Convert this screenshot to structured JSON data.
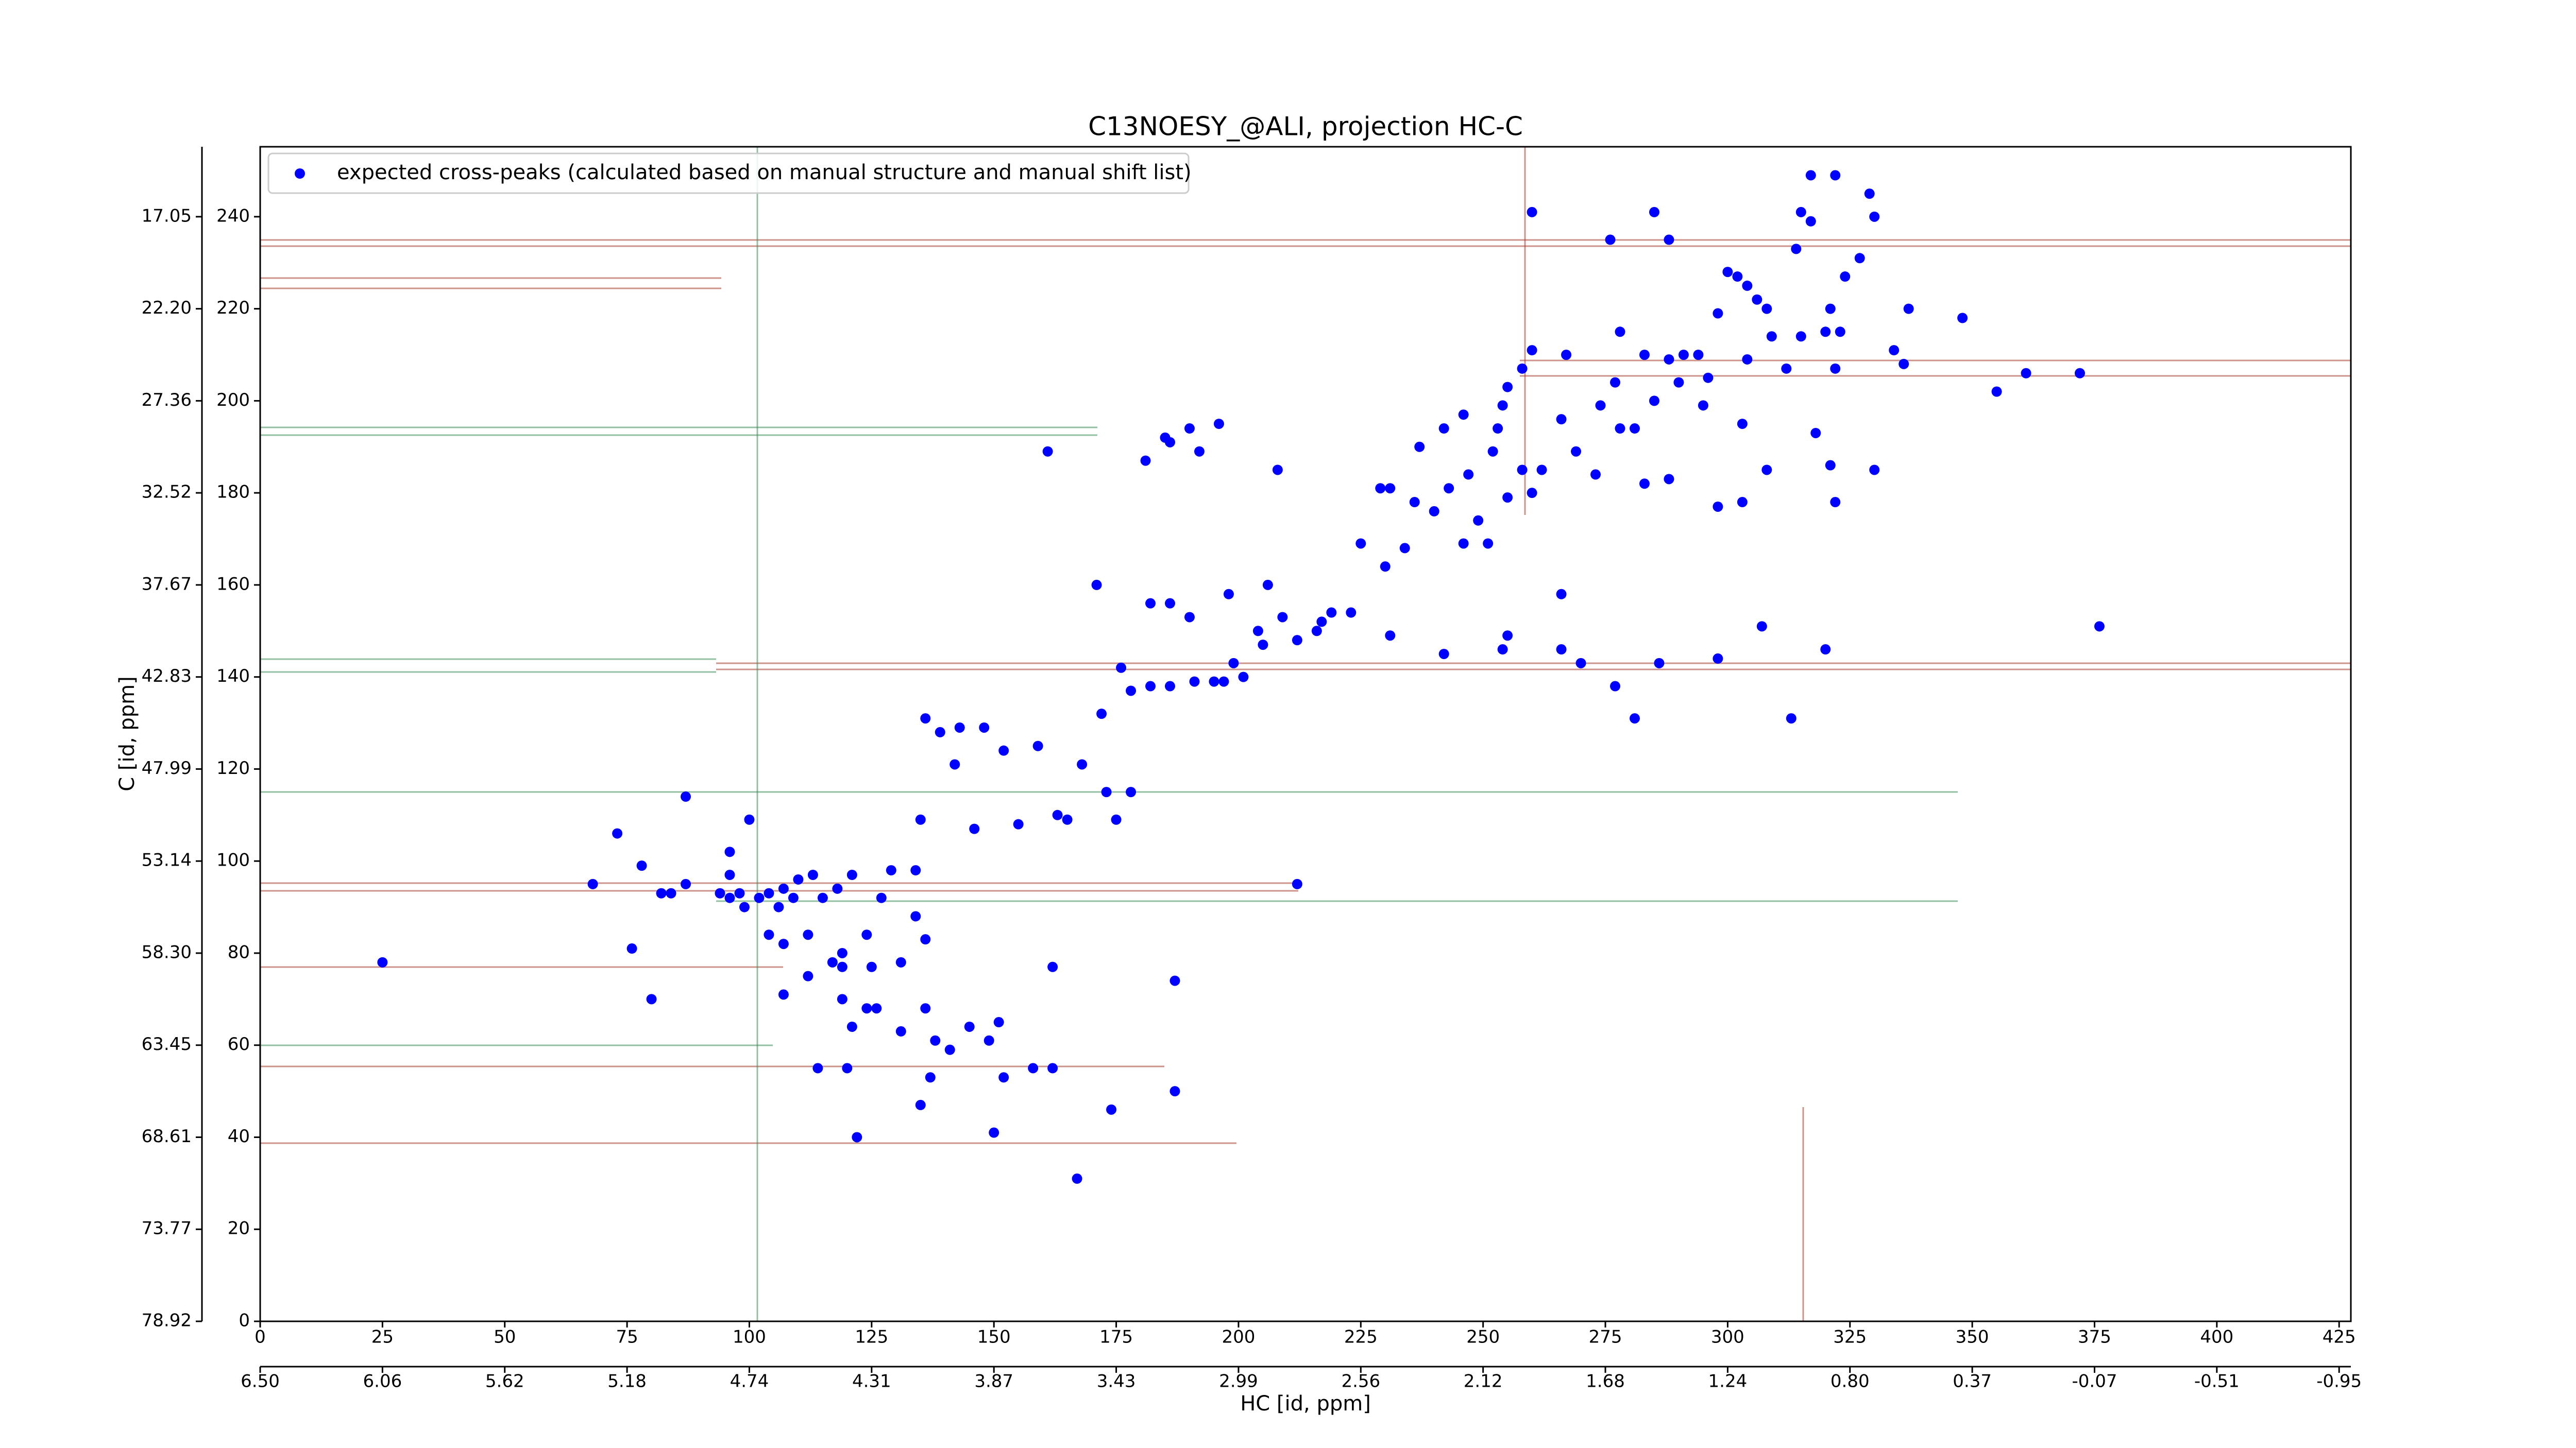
{
  "chart_data": {
    "type": "scatter",
    "title": "C13NOESY_@ALI, projection HC-C",
    "x_label": "HC [id, ppm]",
    "y_label": "C [id, ppm]",
    "xlim": [
      0,
      427.4
    ],
    "ylim": [
      0,
      255.2
    ],
    "xticks": [
      0,
      25,
      50,
      75,
      100,
      125,
      150,
      175,
      200,
      225,
      250,
      275,
      300,
      325,
      350,
      375,
      400,
      425
    ],
    "yticks": [
      0,
      20,
      40,
      60,
      80,
      100,
      120,
      140,
      160,
      180,
      200,
      220,
      240
    ],
    "x2ticks": [
      {
        "value": 0,
        "label": "6.50"
      },
      {
        "value": 25,
        "label": "6.06"
      },
      {
        "value": 50,
        "label": "5.62"
      },
      {
        "value": 75,
        "label": "5.18"
      },
      {
        "value": 100,
        "label": "4.74"
      },
      {
        "value": 125,
        "label": "4.31"
      },
      {
        "value": 150,
        "label": "3.87"
      },
      {
        "value": 175,
        "label": "3.43"
      },
      {
        "value": 200,
        "label": "2.99"
      },
      {
        "value": 225,
        "label": "2.56"
      },
      {
        "value": 250,
        "label": "2.12"
      },
      {
        "value": 275,
        "label": "1.68"
      },
      {
        "value": 300,
        "label": "1.24"
      },
      {
        "value": 325,
        "label": "0.80"
      },
      {
        "value": 350,
        "label": "0.37"
      },
      {
        "value": 375,
        "label": "-0.07"
      },
      {
        "value": 400,
        "label": "-0.51"
      },
      {
        "value": 425,
        "label": "-0.95"
      }
    ],
    "y2ticks": [
      {
        "value": 0,
        "label": "78.92"
      },
      {
        "value": 20,
        "label": "73.77"
      },
      {
        "value": 40,
        "label": "68.61"
      },
      {
        "value": 60,
        "label": "63.45"
      },
      {
        "value": 80,
        "label": "58.30"
      },
      {
        "value": 100,
        "label": "53.14"
      },
      {
        "value": 120,
        "label": "47.99"
      },
      {
        "value": 140,
        "label": "42.83"
      },
      {
        "value": 160,
        "label": "37.67"
      },
      {
        "value": 180,
        "label": "32.52"
      },
      {
        "value": 200,
        "label": "27.36"
      },
      {
        "value": 220,
        "label": "22.20"
      },
      {
        "value": 240,
        "label": "17.05"
      }
    ],
    "legend": "upper left",
    "x": [
      317,
      322,
      329,
      260,
      285,
      315,
      317,
      276,
      288,
      314,
      300,
      302,
      304,
      327,
      324,
      306,
      298,
      308,
      321,
      337,
      348,
      320,
      323,
      309,
      315,
      334,
      336,
      322,
      312,
      304,
      291,
      283,
      296,
      260,
      355,
      361,
      372,
      295,
      277,
      274,
      285,
      255,
      254,
      246,
      242,
      266,
      278,
      281,
      269,
      253,
      252,
      237,
      247,
      258,
      262,
      273,
      283,
      288,
      303,
      322,
      330,
      260,
      255,
      243,
      229,
      231,
      236,
      249,
      251,
      246,
      240,
      234,
      230,
      225,
      266,
      307,
      320,
      298,
      376,
      313,
      281,
      266,
      254,
      242,
      286,
      255,
      270,
      277,
      231,
      223,
      219,
      217,
      216,
      212,
      209,
      204,
      205,
      199,
      201,
      197,
      195,
      191,
      186,
      182,
      178,
      176,
      172,
      186,
      190,
      206,
      198,
      182,
      171,
      161,
      181,
      185,
      190,
      196,
      192,
      186,
      208,
      330,
      288,
      278,
      267,
      258,
      294,
      290,
      303,
      318,
      321,
      308,
      298,
      136,
      139,
      143,
      148,
      142,
      152,
      159,
      168,
      173,
      178,
      175,
      165,
      155,
      146,
      163,
      135,
      134,
      129,
      127,
      121,
      118,
      115,
      113,
      110,
      107,
      104,
      102,
      99,
      96,
      94,
      109,
      106,
      98,
      96,
      100,
      96,
      87,
      78,
      73,
      68,
      76,
      80,
      84,
      87,
      82,
      25,
      104,
      107,
      112,
      117,
      119,
      124,
      134,
      136,
      131,
      125,
      119,
      112,
      119,
      107,
      114,
      120,
      121,
      124,
      126,
      131,
      136,
      138,
      141,
      145,
      149,
      151,
      158,
      162,
      152,
      122,
      137,
      135,
      150,
      174,
      187,
      187,
      212,
      167,
      162
    ],
    "series": [
      {
        "name": "expected cross-peaks (calculated based on manual structure and manual shift list)",
        "color": "#0000ff",
        "values": [
          249,
          249,
          245,
          241,
          241,
          241,
          239,
          235,
          235,
          233,
          228,
          227,
          225,
          231,
          227,
          222,
          219,
          220,
          220,
          220,
          218,
          215,
          215,
          214,
          214,
          211,
          208,
          207,
          207,
          209,
          210,
          210,
          205,
          211,
          202,
          206,
          206,
          199,
          204,
          199,
          200,
          203,
          199,
          197,
          194,
          196,
          194,
          194,
          189,
          194,
          189,
          190,
          184,
          185,
          185,
          184,
          182,
          183,
          178,
          178,
          185,
          180,
          179,
          181,
          181,
          181,
          178,
          174,
          169,
          169,
          176,
          168,
          164,
          169,
          158,
          151,
          146,
          144,
          151,
          131,
          131,
          146,
          146,
          145,
          143,
          149,
          143,
          138,
          149,
          154,
          154,
          152,
          150,
          148,
          153,
          150,
          147,
          143,
          140,
          139,
          139,
          139,
          138,
          138,
          137,
          142,
          132,
          156,
          153,
          160,
          158,
          156,
          160,
          189,
          187,
          192,
          194,
          195,
          189,
          191,
          185,
          240,
          209,
          215,
          210,
          207,
          210,
          204,
          195,
          193,
          186,
          185,
          177,
          131,
          128,
          129,
          129,
          121,
          124,
          125,
          121,
          115,
          115,
          109,
          109,
          108,
          107,
          110,
          109,
          98,
          98,
          92,
          97,
          94,
          92,
          97,
          96,
          94,
          93,
          92,
          90,
          92,
          93,
          92,
          90,
          93,
          97,
          109,
          102,
          114,
          99,
          106,
          95,
          81,
          70,
          93,
          95,
          93,
          78,
          84,
          82,
          84,
          78,
          77,
          84,
          88,
          83,
          78,
          77,
          80,
          75,
          70,
          71,
          55,
          55,
          64,
          68,
          68,
          63,
          68,
          61,
          59,
          64,
          61,
          65,
          55,
          55,
          53,
          40,
          53,
          47,
          41,
          46,
          50,
          74,
          95,
          31,
          77
        ]
      }
    ]
  }
}
